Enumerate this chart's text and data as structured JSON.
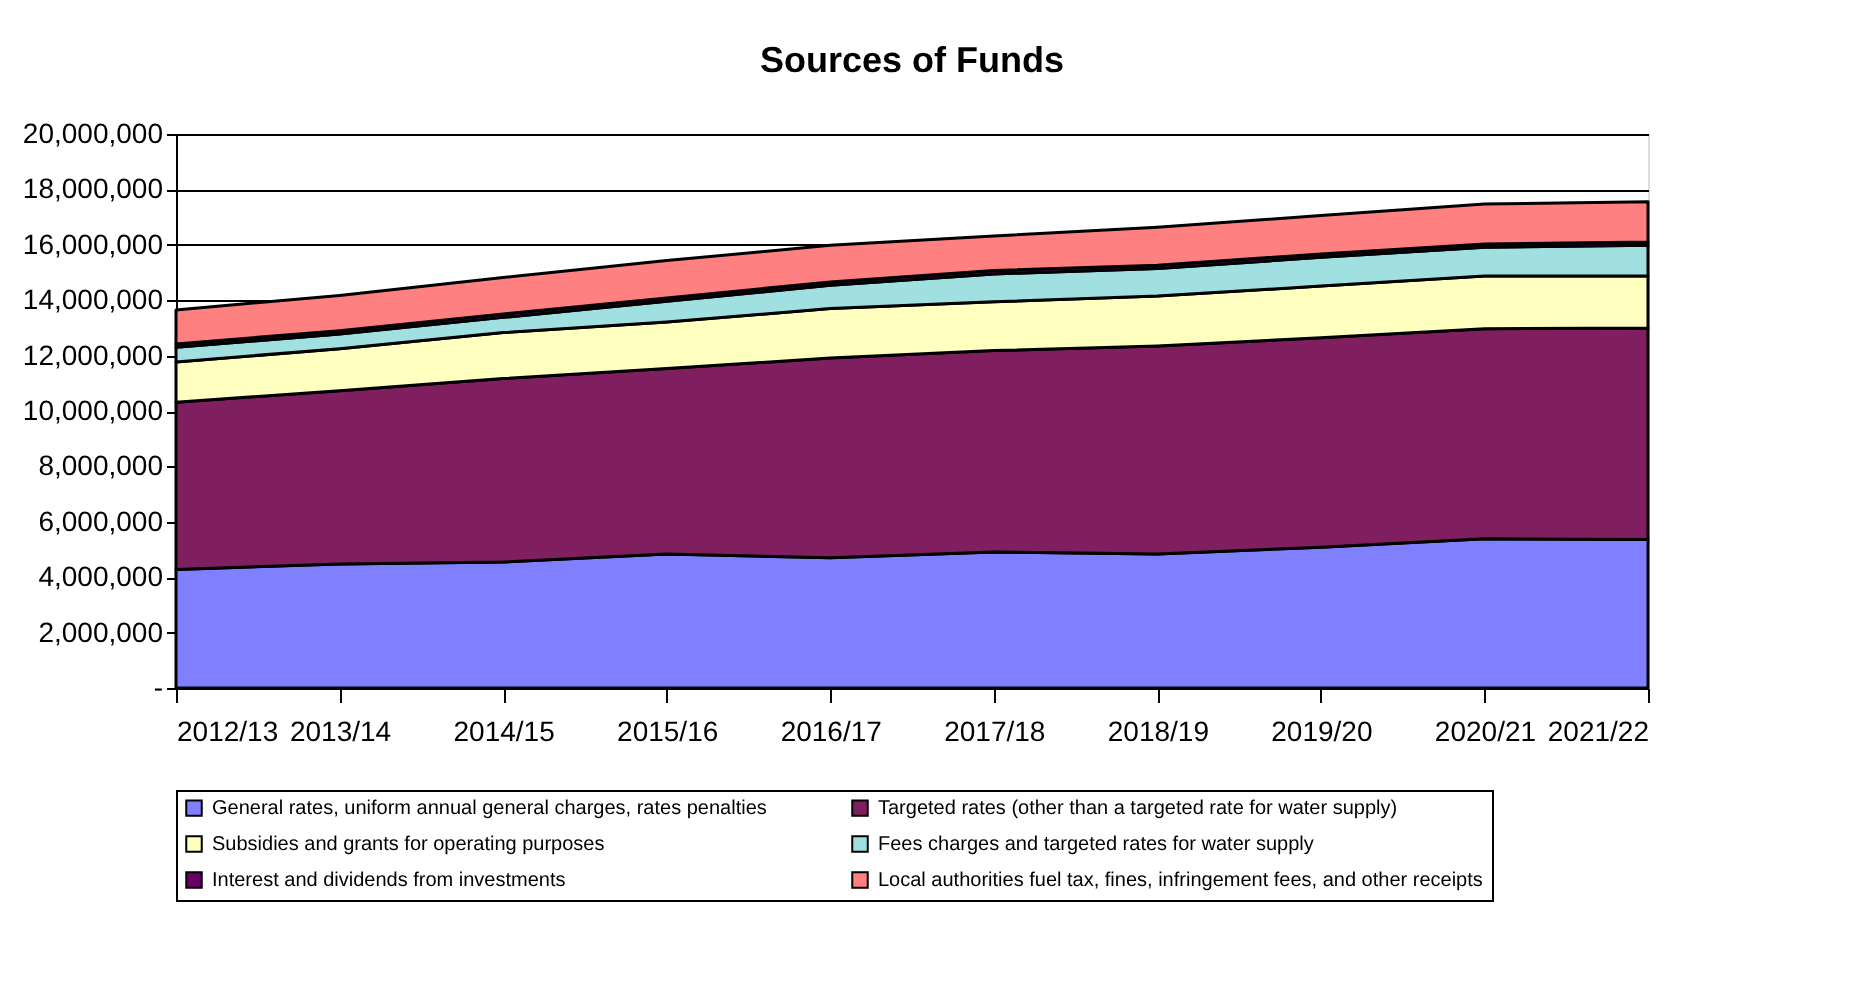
{
  "chart_data": {
    "type": "area",
    "title": "Sources of Funds",
    "stacked": true,
    "grid": "y",
    "legend": "bottom",
    "categories": [
      "2012/13",
      "2013/14",
      "2014/15",
      "2015/16",
      "2016/17",
      "2017/18",
      "2018/19",
      "2019/20",
      "2020/21",
      "2021/22"
    ],
    "ylim": [
      0,
      20000000
    ],
    "yticks": [
      {
        "value": 0,
        "label": "-"
      },
      {
        "value": 2000000,
        "label": "2,000,000"
      },
      {
        "value": 4000000,
        "label": "4,000,000"
      },
      {
        "value": 6000000,
        "label": "6,000,000"
      },
      {
        "value": 8000000,
        "label": "8,000,000"
      },
      {
        "value": 10000000,
        "label": "10,000,000"
      },
      {
        "value": 12000000,
        "label": "12,000,000"
      },
      {
        "value": 14000000,
        "label": "14,000,000"
      },
      {
        "value": 16000000,
        "label": "16,000,000"
      },
      {
        "value": 18000000,
        "label": "18,000,000"
      },
      {
        "value": 20000000,
        "label": "20,000,000"
      }
    ],
    "series": [
      {
        "name": "General rates, uniform annual general charges, rates penalties",
        "color": "#8080ff",
        "values": [
          4280000,
          4480000,
          4550000,
          4840000,
          4700000,
          4910000,
          4840000,
          5080000,
          5390000,
          5360000
        ]
      },
      {
        "name": "Targeted rates (other than a targeted rate for water supply)",
        "color": "#7f1f5f",
        "values": [
          6040000,
          6250000,
          6620000,
          6690000,
          7210000,
          7270000,
          7510000,
          7560000,
          7580000,
          7640000
        ]
      },
      {
        "name": "Subsidies and grants for operating purposes",
        "color": "#ffffc0",
        "values": [
          1450000,
          1520000,
          1660000,
          1680000,
          1790000,
          1760000,
          1800000,
          1870000,
          1900000,
          1870000
        ]
      },
      {
        "name": "Fees charges and targeted rates for water supply",
        "color": "#a0e0e0",
        "values": [
          530000,
          530000,
          550000,
          750000,
          840000,
          1010000,
          990000,
          1040000,
          1040000,
          1110000
        ]
      },
      {
        "name": "Interest and dividends from investments",
        "color": "#660066",
        "values": [
          120000,
          120000,
          120000,
          120000,
          120000,
          120000,
          120000,
          120000,
          120000,
          120000
        ]
      },
      {
        "name": "Local authorities fuel tax, fines, infringement fees, and other receipts",
        "color": "#ff8080",
        "values": [
          1230000,
          1270000,
          1320000,
          1350000,
          1320000,
          1250000,
          1370000,
          1390000,
          1440000,
          1450000
        ]
      }
    ]
  }
}
